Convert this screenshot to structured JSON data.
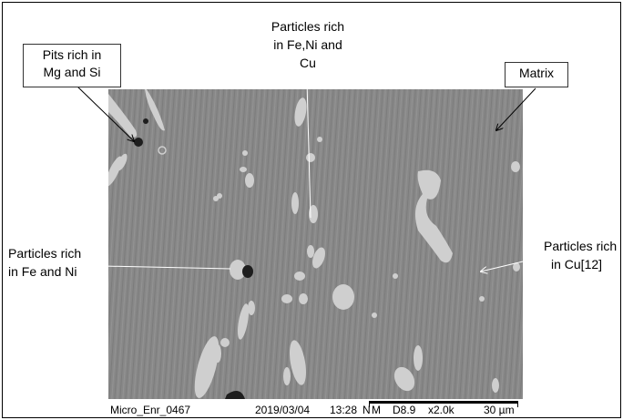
{
  "labels": {
    "pits": [
      "Pits rich in",
      "Mg and Si"
    ],
    "fe_ni_cu": [
      "Particles rich",
      "in Fe,Ni and",
      "Cu"
    ],
    "matrix": "Matrix",
    "fe_ni": [
      "Particles rich",
      "in Fe and Ni"
    ],
    "cu": [
      "Particles rich",
      "in Cu[12]"
    ]
  },
  "footer": {
    "image_id": "Micro_Enr_0467",
    "date": "2019/03/04",
    "time": "13:28",
    "mode": "N",
    "signal": "M",
    "wd": "D8.9",
    "magnification": "x2.0k",
    "scale": "30 µm"
  },
  "colors": {
    "matrix": "#8a8a8a",
    "particle": "#cfcfcf",
    "pit": "#1e1e1e"
  }
}
